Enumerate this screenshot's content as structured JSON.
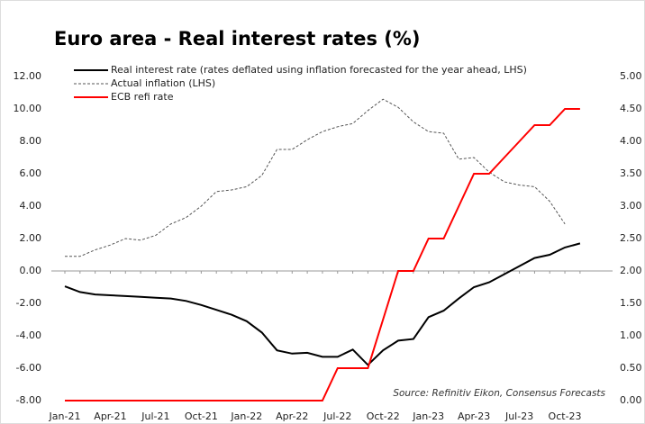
{
  "chart_data": {
    "type": "line",
    "title": "Euro area - Real interest rates (%)",
    "annotation": "Source: Refinitiv Eikon, Consensus Forecasts",
    "categories": [
      "Jan-21",
      null,
      null,
      "Apr-21",
      null,
      null,
      "Jul-21",
      null,
      null,
      "Oct-21",
      null,
      null,
      "Jan-22",
      null,
      null,
      "Apr-22",
      null,
      null,
      "Jul-22",
      null,
      null,
      "Oct-22",
      null,
      null,
      "Jan-23",
      null,
      null,
      "Apr-23",
      null,
      null,
      "Jul-23",
      null,
      null,
      "Oct-23",
      null
    ],
    "series": [
      {
        "name": "Real interest rate (rates deflated using inflation forecasted for the year ahead, LHS)",
        "color": "#000000",
        "style": "solid",
        "axis": "y",
        "values": [
          -0.95,
          -1.3,
          -1.45,
          -1.5,
          -1.55,
          -1.6,
          -1.65,
          -1.7,
          -1.85,
          -2.1,
          -2.4,
          -2.7,
          -3.1,
          -3.8,
          -4.9,
          -5.1,
          -5.05,
          -5.3,
          -5.3,
          -4.85,
          -5.8,
          -4.9,
          -4.3,
          -4.2,
          -2.85,
          -2.45,
          -1.7,
          -1.0,
          -0.7,
          -0.2,
          0.3,
          0.8,
          1.0,
          1.45,
          1.7
        ]
      },
      {
        "name": "Actual inflation (LHS)",
        "color": "#555555",
        "style": "dashed",
        "axis": "y",
        "values": [
          0.9,
          0.9,
          1.3,
          1.6,
          2.0,
          1.9,
          2.2,
          2.9,
          3.3,
          4.0,
          4.9,
          5.0,
          5.2,
          5.9,
          7.5,
          7.5,
          8.1,
          8.6,
          8.9,
          9.1,
          9.9,
          10.6,
          10.1,
          9.2,
          8.6,
          8.5,
          6.9,
          7.0,
          6.1,
          5.5,
          5.3,
          5.2,
          4.3,
          2.9,
          null
        ]
      },
      {
        "name": "ECB refi rate",
        "color": "#ff0000",
        "style": "solid",
        "axis": "y2",
        "values": [
          0,
          0,
          0,
          0,
          0,
          0,
          0,
          0,
          0,
          0,
          0,
          0,
          0,
          0,
          0,
          0,
          0,
          0,
          0.5,
          0.5,
          0.5,
          1.25,
          2.0,
          2.0,
          2.5,
          2.5,
          3.0,
          3.5,
          3.5,
          3.75,
          4.0,
          4.25,
          4.25,
          4.5,
          4.5
        ]
      }
    ],
    "ylim": [
      -8,
      12
    ],
    "yticks": [
      {
        "value": -8,
        "label": "-8.00"
      },
      {
        "value": -6,
        "label": "-6.00"
      },
      {
        "value": -4,
        "label": "-4.00"
      },
      {
        "value": -2,
        "label": "-2.00"
      },
      {
        "value": 0,
        "label": "0.00"
      },
      {
        "value": 2,
        "label": "2.00"
      },
      {
        "value": 4,
        "label": "4.00"
      },
      {
        "value": 6,
        "label": "6.00"
      },
      {
        "value": 8,
        "label": "8.00"
      },
      {
        "value": 10,
        "label": "10.00"
      },
      {
        "value": 12,
        "label": "12.00"
      }
    ],
    "y2lim": [
      0,
      5
    ],
    "y2ticks": [
      {
        "value": 0,
        "label": "0.00"
      },
      {
        "value": 0.5,
        "label": "0.50"
      },
      {
        "value": 1,
        "label": "1.00"
      },
      {
        "value": 1.5,
        "label": "1.50"
      },
      {
        "value": 2,
        "label": "2.00"
      },
      {
        "value": 2.5,
        "label": "2.50"
      },
      {
        "value": 3,
        "label": "3.00"
      },
      {
        "value": 3.5,
        "label": "3.50"
      },
      {
        "value": 4,
        "label": "4.00"
      },
      {
        "value": 4.5,
        "label": "4.50"
      },
      {
        "value": 5,
        "label": "5.00"
      }
    ],
    "y2_color": "#ff0000",
    "grid": false
  }
}
